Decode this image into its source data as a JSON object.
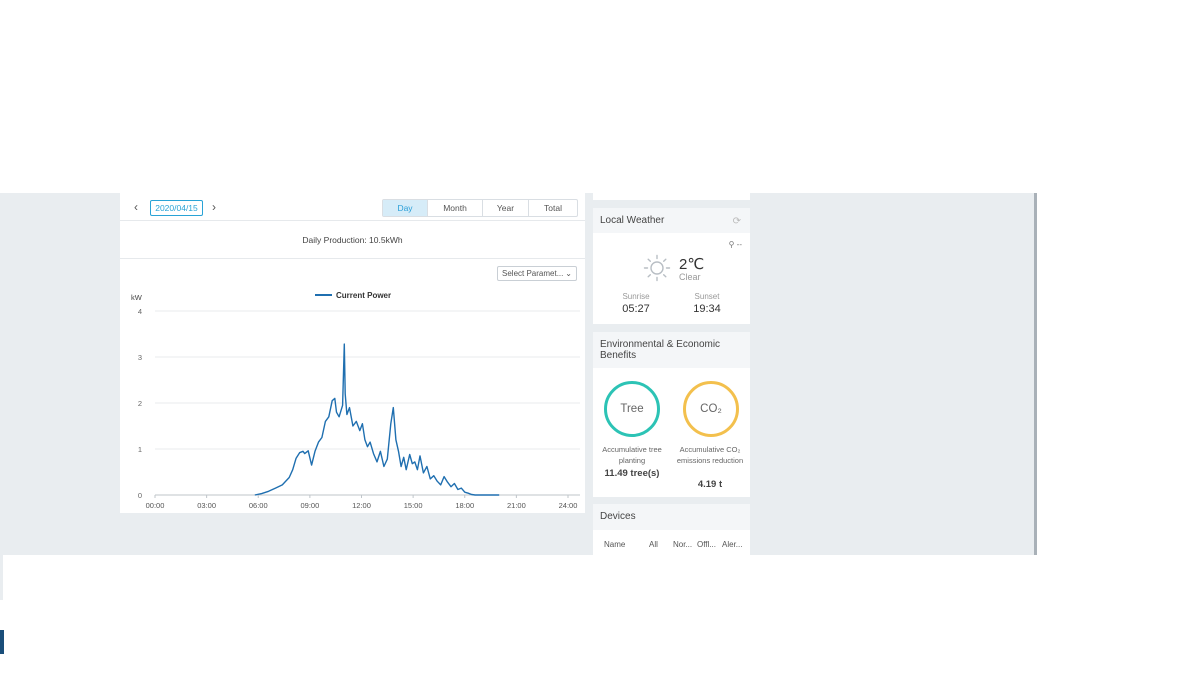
{
  "production": {
    "date": "2020/04/15",
    "prev_icon": "chevron-left-icon",
    "next_icon": "chevron-right-icon",
    "tabs": [
      {
        "label": "Day",
        "active": true
      },
      {
        "label": "Month",
        "active": false
      },
      {
        "label": "Year",
        "active": false
      },
      {
        "label": "Total",
        "active": false
      }
    ],
    "daily_production": "Daily Production: 10.5kWh",
    "select_placeholder": "Select Paramet..."
  },
  "chart_data": {
    "type": "line",
    "title": "",
    "ylabel": "kW",
    "xlabel": "",
    "ylim": [
      0,
      4
    ],
    "xlim": [
      0,
      24
    ],
    "y_ticks": [
      0,
      1,
      2,
      3,
      4
    ],
    "x_ticks": [
      "00:00",
      "03:00",
      "06:00",
      "09:00",
      "12:00",
      "15:00",
      "18:00",
      "21:00",
      "24:00"
    ],
    "legend_position": "top-center",
    "series": [
      {
        "name": "Current Power",
        "color": "#1f6fb0",
        "x": [
          5.8,
          6.2,
          6.6,
          7.0,
          7.4,
          7.8,
          8.0,
          8.2,
          8.4,
          8.6,
          8.7,
          8.9,
          9.1,
          9.3,
          9.5,
          9.7,
          9.9,
          10.1,
          10.3,
          10.45,
          10.55,
          10.7,
          10.9,
          11.0,
          11.05,
          11.15,
          11.3,
          11.5,
          11.7,
          11.9,
          12.05,
          12.2,
          12.35,
          12.5,
          12.7,
          12.9,
          13.1,
          13.3,
          13.5,
          13.7,
          13.85,
          14.0,
          14.15,
          14.3,
          14.45,
          14.6,
          14.8,
          14.95,
          15.1,
          15.25,
          15.4,
          15.6,
          15.8,
          16.0,
          16.2,
          16.4,
          16.6,
          16.8,
          17.0,
          17.2,
          17.4,
          17.6,
          17.8,
          18.0,
          18.2,
          18.4,
          18.6,
          18.8,
          19.0,
          19.3,
          19.6,
          20.0
        ],
        "values": [
          0.0,
          0.03,
          0.08,
          0.15,
          0.22,
          0.38,
          0.55,
          0.8,
          0.92,
          0.95,
          0.9,
          0.96,
          0.65,
          0.95,
          1.15,
          1.25,
          1.6,
          1.7,
          2.05,
          2.1,
          1.8,
          1.7,
          1.95,
          3.28,
          2.2,
          1.75,
          1.9,
          1.5,
          1.6,
          1.4,
          1.55,
          1.2,
          1.05,
          1.15,
          0.9,
          0.72,
          0.95,
          0.62,
          0.78,
          1.55,
          1.9,
          1.2,
          0.95,
          0.62,
          0.82,
          0.55,
          0.88,
          0.68,
          0.72,
          0.55,
          0.85,
          0.48,
          0.62,
          0.35,
          0.42,
          0.3,
          0.22,
          0.4,
          0.28,
          0.18,
          0.25,
          0.12,
          0.15,
          0.06,
          0.04,
          0.01,
          0.0,
          0.0,
          0.0,
          0.0,
          0.0,
          0.0
        ]
      }
    ]
  },
  "weather": {
    "title": "Local Weather",
    "refresh_icon": "refresh-icon",
    "location": "--",
    "location_icon": "location-pin-icon",
    "weather_icon": "sun-icon",
    "temperature": "2℃",
    "condition": "Clear",
    "sunrise_label": "Sunrise",
    "sunrise_value": "05:27",
    "sunset_label": "Sunset",
    "sunset_value": "19:34"
  },
  "benefits": {
    "title": "Environmental & Economic Benefits",
    "tree_label": "Tree",
    "tree_desc": "Accumulative tree planting",
    "tree_value": "11.49 tree(s)",
    "co2_label": "CO₂",
    "co2_desc": "Accumulative CO₂ emissions reduction",
    "co2_value": "4.19 t",
    "colors": {
      "tree": "#2cc3b5",
      "co2": "#f3c04d"
    }
  },
  "devices": {
    "title": "Devices",
    "columns": [
      "Name",
      "All",
      "Nor...",
      "Offl...",
      "Aler..."
    ]
  }
}
